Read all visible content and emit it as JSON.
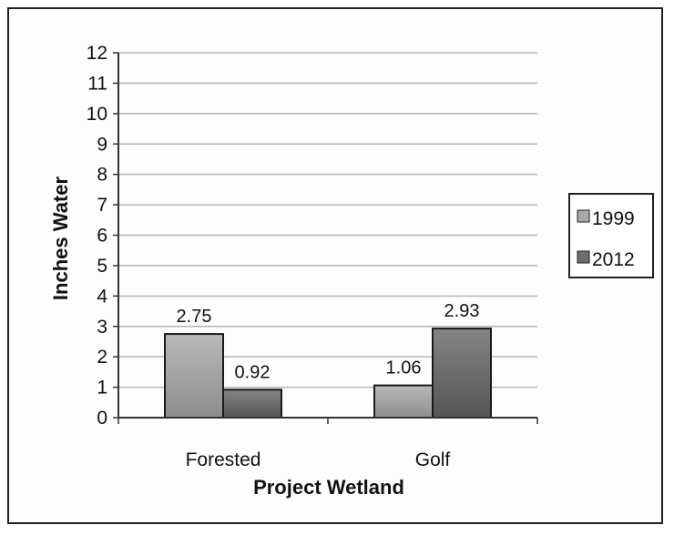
{
  "chart_data": {
    "type": "bar",
    "title": "",
    "xlabel": "Project Wetland",
    "ylabel": "Inches Water",
    "categories": [
      "Forested",
      "Golf"
    ],
    "series": [
      {
        "name": "1999",
        "values": [
          2.75,
          1.06
        ],
        "labels": [
          "2.75",
          "1.06"
        ]
      },
      {
        "name": "2012",
        "values": [
          0.92,
          2.93
        ],
        "labels": [
          "0.92",
          "2.93"
        ]
      }
    ],
    "ylim": [
      0,
      12
    ],
    "yticks": [
      "0",
      "1",
      "2",
      "3",
      "4",
      "5",
      "6",
      "7",
      "8",
      "9",
      "10",
      "11",
      "12"
    ],
    "grid": true,
    "legend_position": "right",
    "colors": {
      "1999": "#a9a9a9",
      "2012": "#6e6e6e",
      "grid": "#b5b5b5",
      "axis": "#333333"
    }
  }
}
